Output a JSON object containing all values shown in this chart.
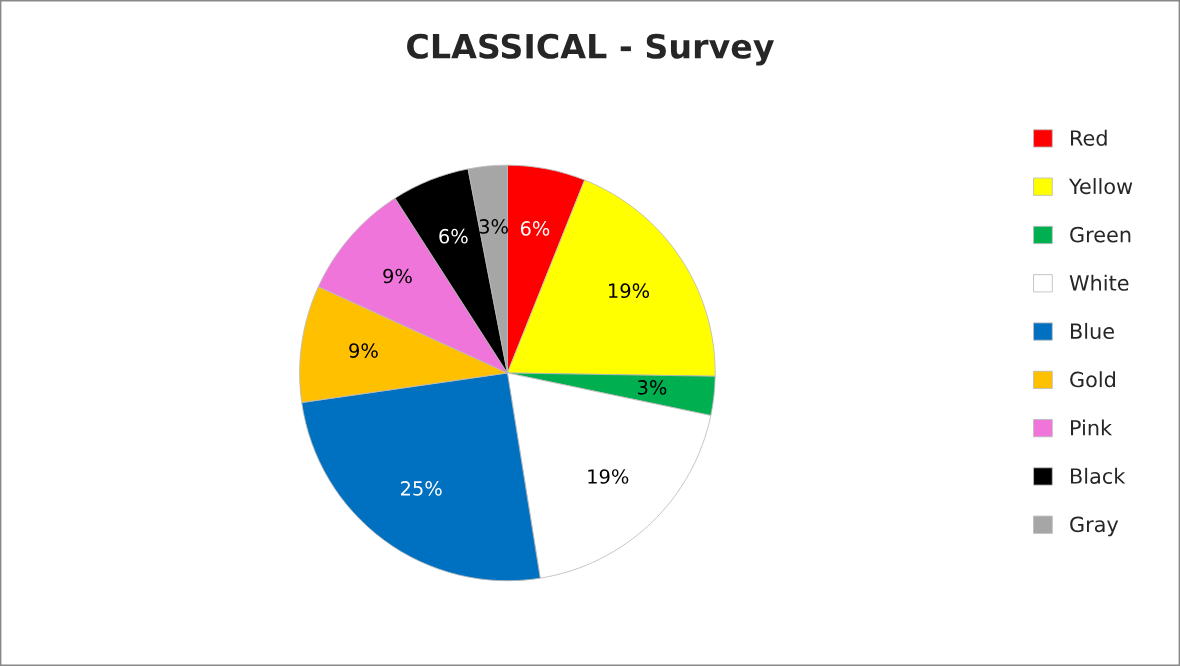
{
  "chart_data": {
    "type": "pie",
    "title": "CLASSICAL - Survey",
    "categories": [
      "Red",
      "Yellow",
      "Green",
      "White",
      "Blue",
      "Gold",
      "Pink",
      "Black",
      "Gray"
    ],
    "values": [
      6,
      19,
      3,
      19,
      25,
      9,
      9,
      6,
      3
    ],
    "value_labels": [
      "6%",
      "19%",
      "3%",
      "19%",
      "25%",
      "9%",
      "9%",
      "6%",
      "3%"
    ],
    "colors": [
      "#ff0000",
      "#ffff00",
      "#00b050",
      "#ffffff",
      "#0070c0",
      "#ffc000",
      "#f075db",
      "#000000",
      "#a6a6a6"
    ],
    "legend": "right"
  }
}
